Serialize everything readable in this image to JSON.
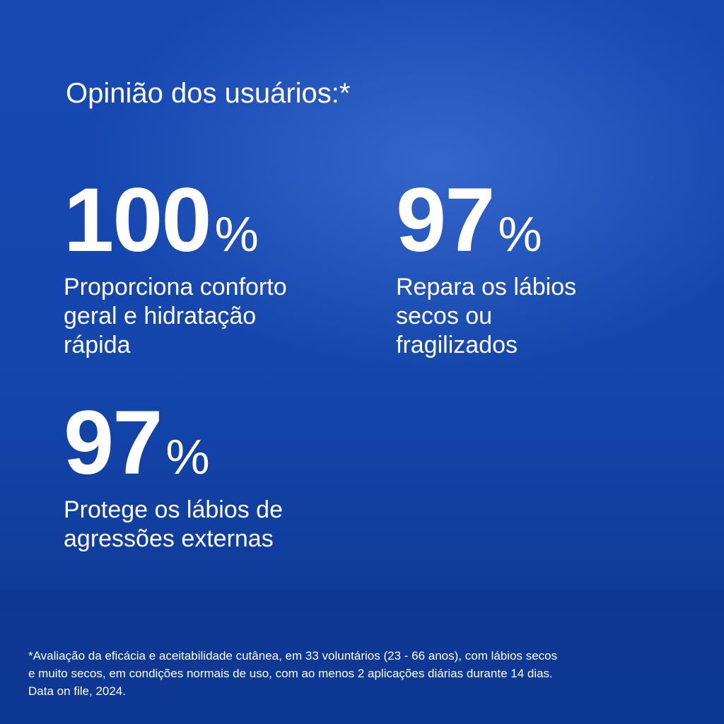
{
  "title": "Opinião dos usuários:*",
  "stats": [
    {
      "value": "100",
      "unit": "%",
      "description": [
        "Proporciona conforto",
        "geral e hidratação",
        "rápida"
      ]
    },
    {
      "value": "97",
      "unit": "%",
      "description": [
        "Repara os lábios",
        "secos ou",
        "fragilizados"
      ]
    },
    {
      "value": "97",
      "unit": "%",
      "description": [
        "Protege os lábios de",
        "agressões externas"
      ]
    }
  ],
  "footnote": [
    "*Avaliação da eficácia e aceitabilidade cutânea, em 33 voluntários (23 - 66 anos), com lábios secos",
    "e muito secos, em condições normais de uso, com ao menos 2 aplicações diárias durante 14 dias.",
    "Data on file, 2024."
  ]
}
